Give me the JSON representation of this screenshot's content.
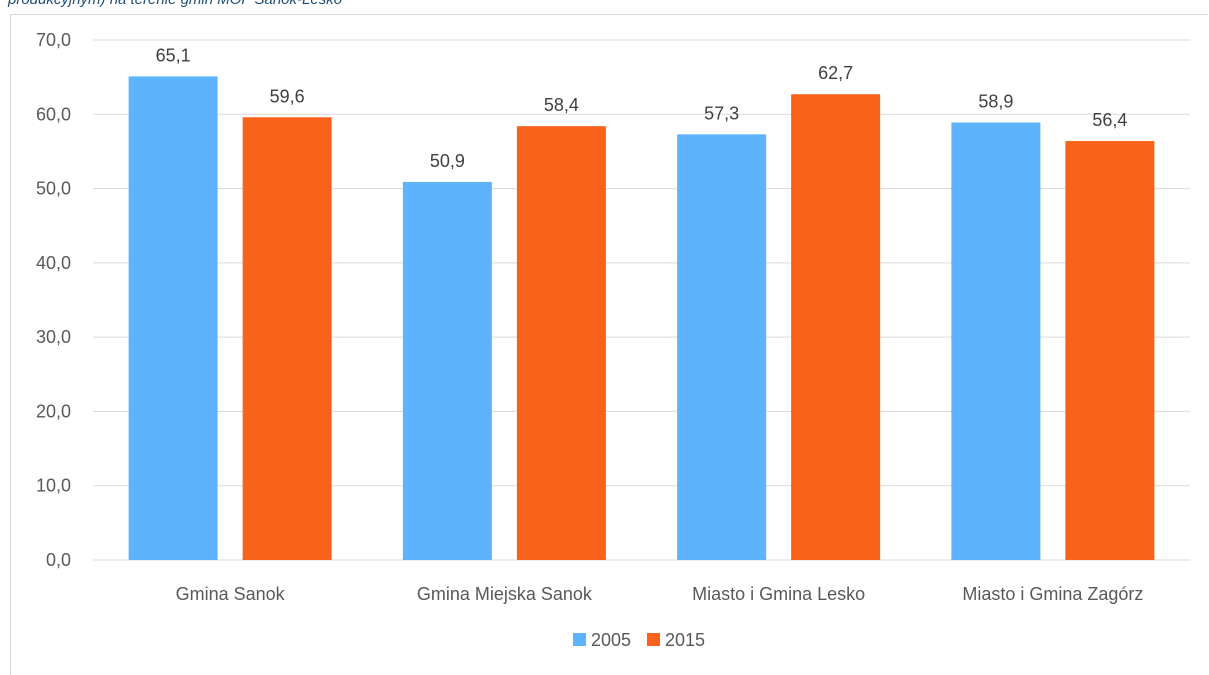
{
  "caption": "produkcyjnym) na terenie gmin MOF Sanok-Lesko",
  "chart_data": {
    "type": "bar",
    "title": "",
    "xlabel": "",
    "ylabel": "",
    "categories": [
      "Gmina Sanok",
      "Gmina Miejska Sanok",
      "Miasto i Gmina Lesko",
      "Miasto i Gmina Zagórz"
    ],
    "series": [
      {
        "name": "2005",
        "values": [
          65.1,
          50.9,
          57.3,
          58.9
        ],
        "color": "#5eb3fc",
        "labels": [
          "65,1",
          "50,9",
          "57,3",
          "58,9"
        ]
      },
      {
        "name": "2015",
        "values": [
          59.6,
          58.4,
          62.7,
          56.4
        ],
        "color": "#f8621a",
        "labels": [
          "59,6",
          "58,4",
          "62,7",
          "56,4"
        ]
      }
    ],
    "ylim": [
      0,
      70
    ],
    "yticks": [
      0,
      10,
      20,
      30,
      40,
      50,
      60,
      70
    ],
    "ytick_labels": [
      "0,0",
      "10,0",
      "20,0",
      "30,0",
      "40,0",
      "50,0",
      "60,0",
      "70,0"
    ],
    "grid": true,
    "legend_position": "bottom",
    "gridline_color": "#d9d9d9"
  }
}
